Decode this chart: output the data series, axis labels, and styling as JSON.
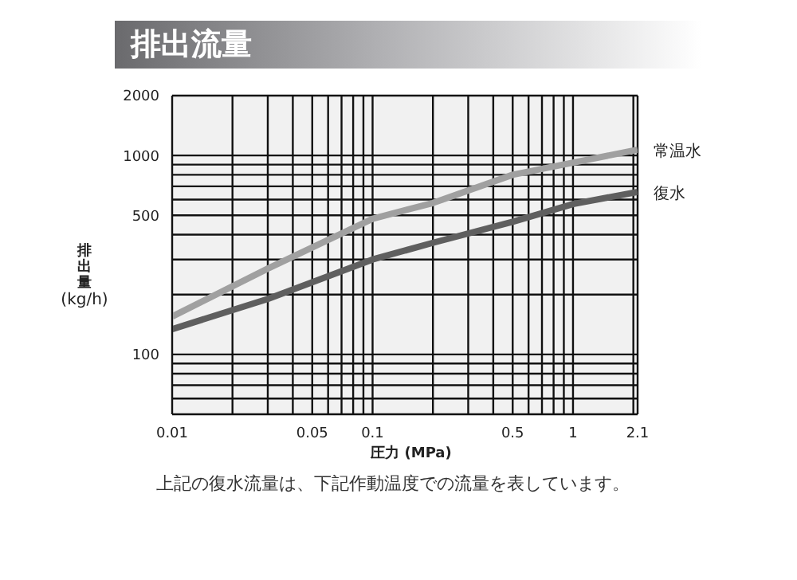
{
  "chart_data": {
    "type": "line",
    "title": "排出流量",
    "xlabel": "圧力 (MPa)",
    "ylabel": "排出量 (kg/h)",
    "log": "xy",
    "grid": true,
    "marker": "none",
    "line_style": "solid",
    "xlim": [
      0.01,
      2.1
    ],
    "ylim": [
      50,
      2000
    ],
    "xticks": [
      0.01,
      {
        "value": 0.02,
        "label": null
      },
      {
        "value": 0.03,
        "label": null
      },
      {
        "value": 0.04,
        "label": null
      },
      0.05,
      {
        "value": 0.06,
        "label": null
      },
      {
        "value": 0.07,
        "label": null
      },
      {
        "value": 0.08,
        "label": null
      },
      {
        "value": 0.09,
        "label": null
      },
      0.1,
      {
        "value": 0.2,
        "label": null
      },
      {
        "value": 0.3,
        "label": null
      },
      {
        "value": 0.4,
        "label": null
      },
      0.5,
      {
        "value": 0.6,
        "label": null
      },
      {
        "value": 0.7,
        "label": null
      },
      {
        "value": 0.8,
        "label": null
      },
      {
        "value": 0.9,
        "label": null
      },
      1,
      {
        "value": 2,
        "label": null
      },
      2.1
    ],
    "yticks": [
      {
        "value": 60,
        "label": null
      },
      {
        "value": 70,
        "label": null
      },
      {
        "value": 80,
        "label": null
      },
      {
        "value": 90,
        "label": null
      },
      100,
      {
        "value": 200,
        "label": null
      },
      {
        "value": 300,
        "label": null
      },
      {
        "value": 400,
        "label": null
      },
      500,
      {
        "value": 600,
        "label": null
      },
      {
        "value": 700,
        "label": null
      },
      {
        "value": 800,
        "label": null
      },
      {
        "value": 900,
        "label": null
      },
      1000,
      2000
    ],
    "x": [
      0.01,
      0.03,
      0.1,
      0.2,
      0.5,
      1,
      2.1
    ],
    "series": [
      {
        "name": "常温水",
        "color": "#a0a0a0",
        "values": [
          155,
          270,
          481,
          577,
          800,
          920,
          1070
        ]
      },
      {
        "name": "復水",
        "color": "#5f5f5f",
        "values": [
          134,
          190,
          300,
          364,
          464,
          570,
          656
        ]
      }
    ],
    "annotations": [
      "上記の復水流量は、下記作動温度での流量を表しています。"
    ]
  }
}
